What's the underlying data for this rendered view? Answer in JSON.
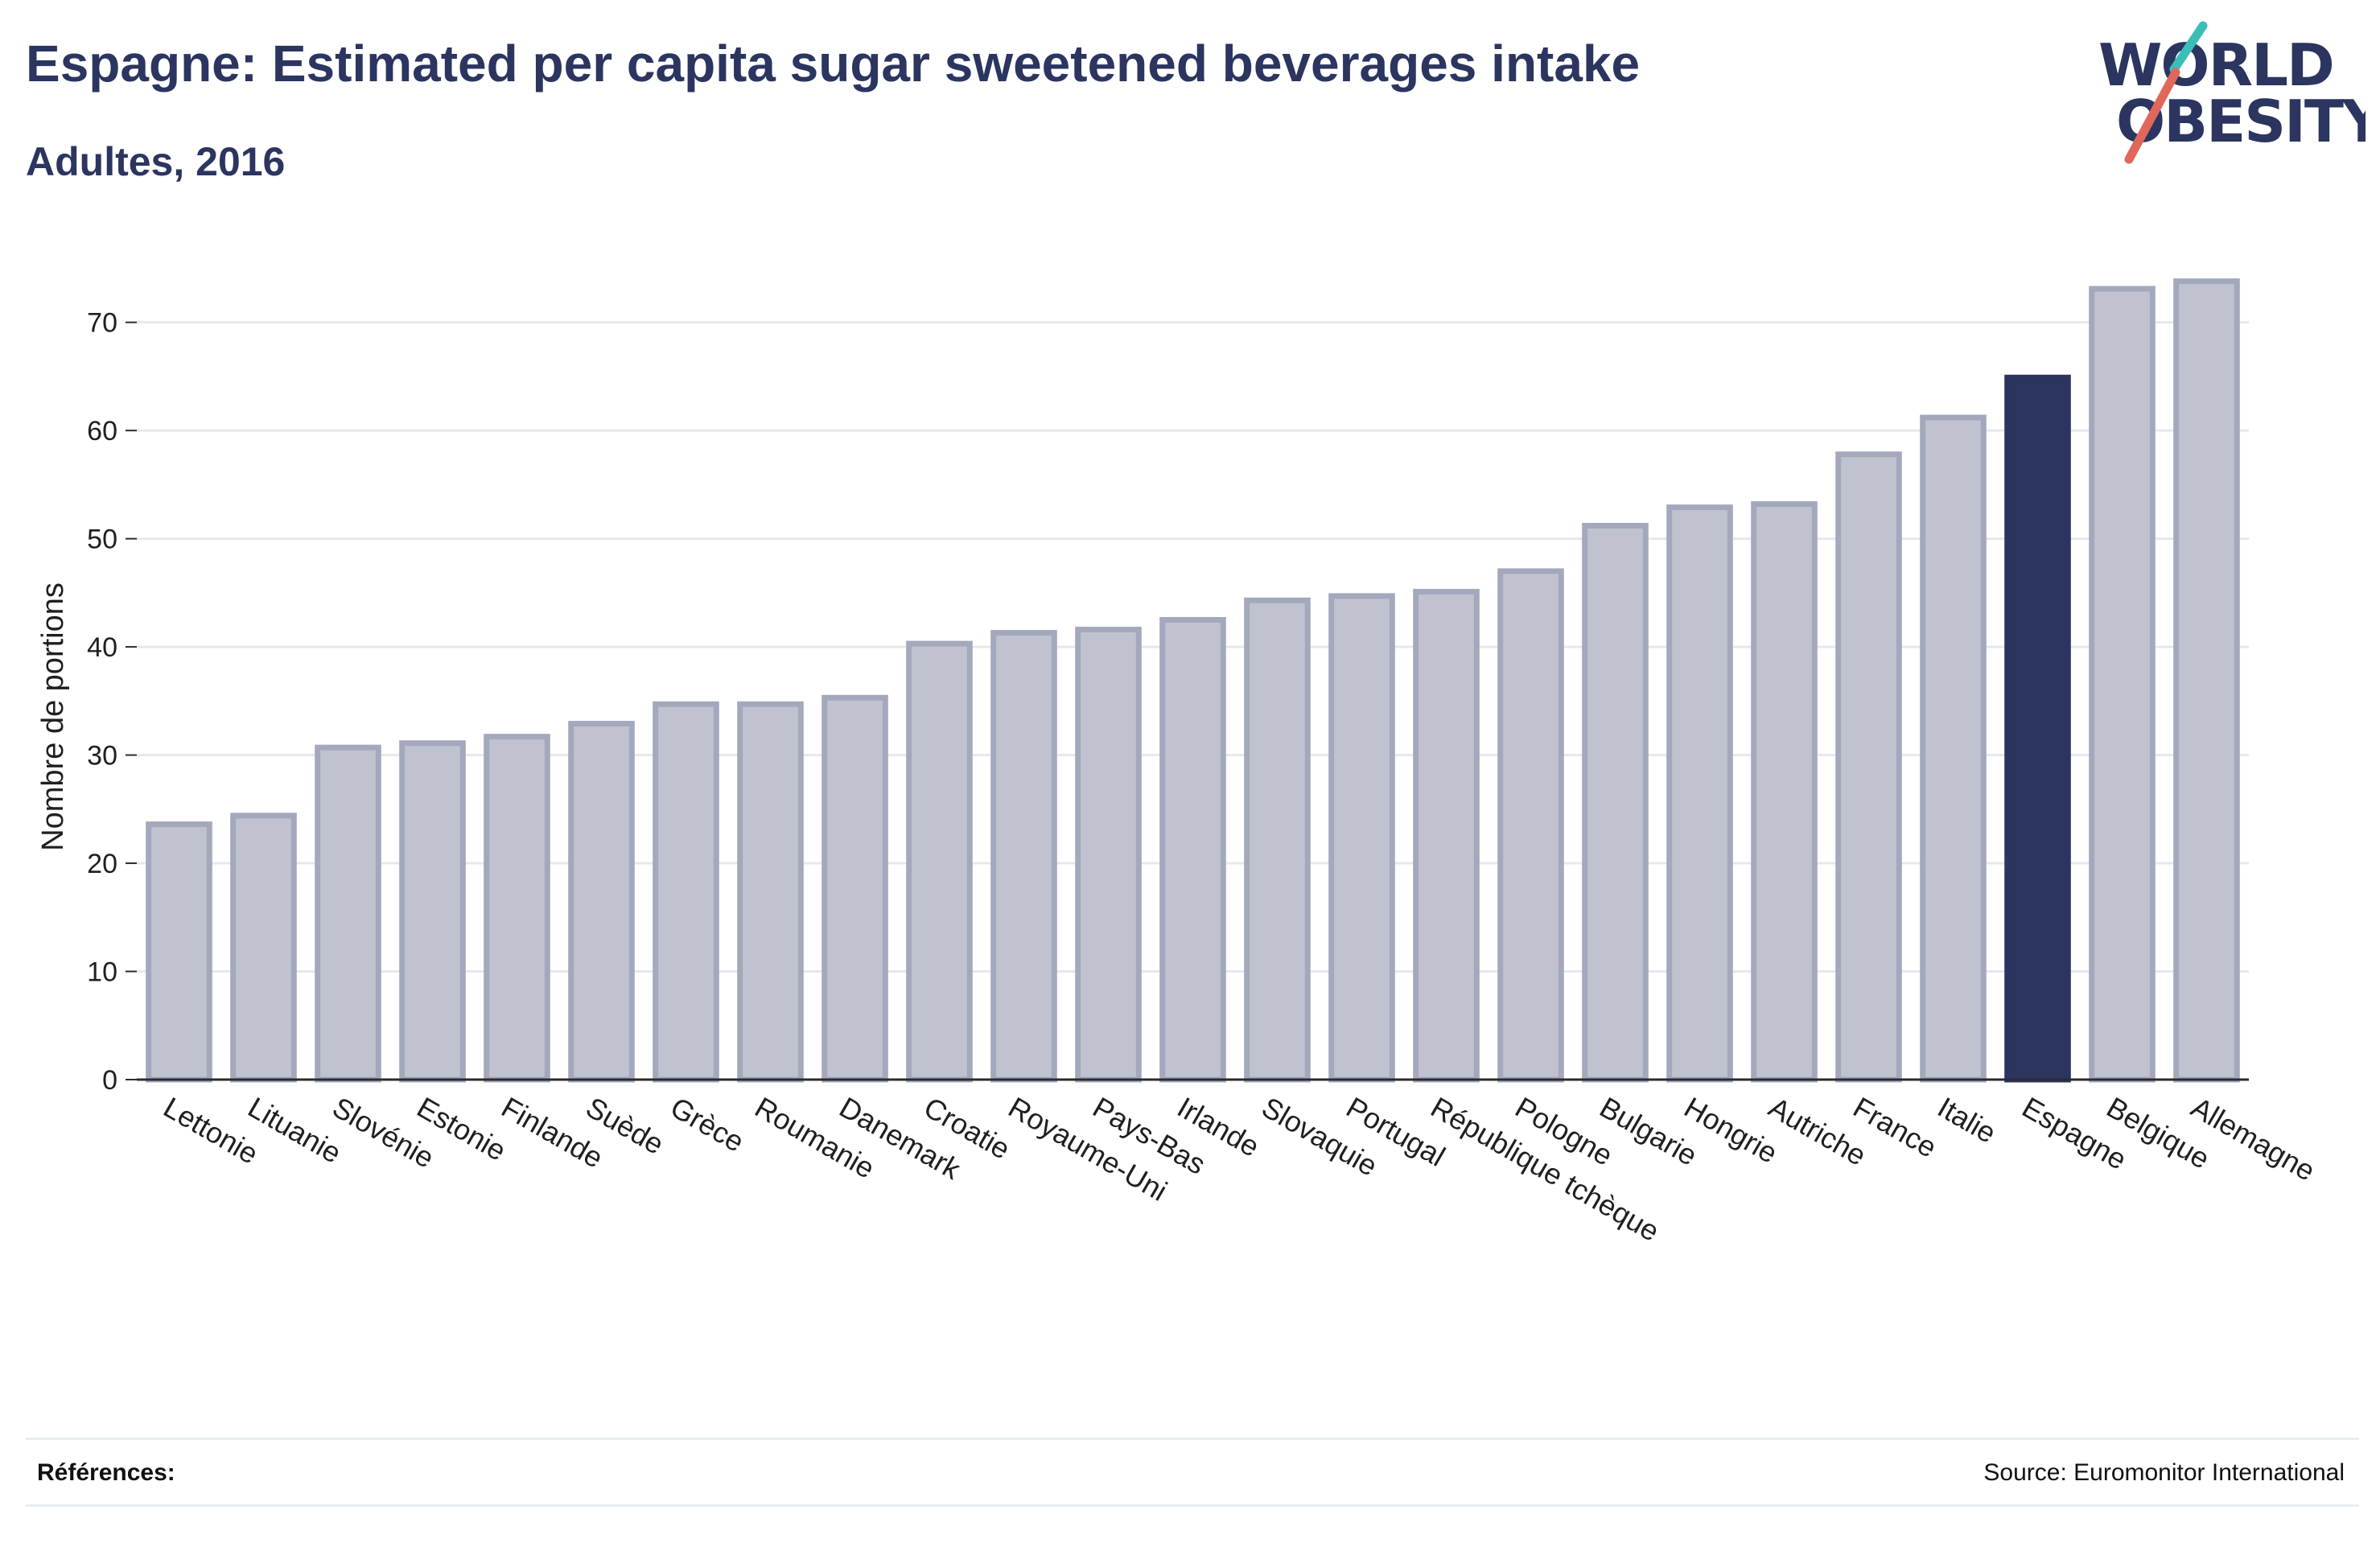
{
  "header": {
    "title": "Espagne: Estimated per capita sugar sweetened beverages intake",
    "subtitle": "Adultes, 2016"
  },
  "logo": {
    "line1": "WORLD",
    "line2": "OBESITY",
    "slash_color_top": "#3dbdb8",
    "slash_color_bottom": "#e0685a"
  },
  "footer": {
    "references_label": "Références:",
    "source": "Source: Euromonitor International"
  },
  "colors": {
    "bar": "#c0c3cf",
    "bar_outline": "#a4a8bd",
    "highlight": "#2b3560",
    "grid": "#e6e8ee",
    "axis": "#2b2b2b"
  },
  "chart_data": {
    "type": "bar",
    "title": "Espagne: Estimated per capita sugar sweetened beverages intake",
    "subtitle": "Adultes, 2016",
    "xlabel": "",
    "ylabel": "Nombre de portions",
    "ylim": [
      0,
      76
    ],
    "yticks": [
      0,
      10,
      20,
      30,
      40,
      50,
      60,
      70
    ],
    "grid": true,
    "highlight": "Espagne",
    "categories": [
      "Lettonie",
      "Lituanie",
      "Slovénie",
      "Estonie",
      "Finlande",
      "Suède",
      "Grèce",
      "Roumanie",
      "Danemark",
      "Croatie",
      "Royaume-Uni",
      "Pays-Bas",
      "Irlande",
      "Slovaquie",
      "Portugal",
      "République tchèque",
      "Pologne",
      "Bulgarie",
      "Hongrie",
      "Autriche",
      "France",
      "Italie",
      "Espagne",
      "Belgique",
      "Allemagne"
    ],
    "values": [
      23.6,
      24.4,
      30.7,
      31.1,
      31.7,
      32.9,
      34.7,
      34.7,
      35.3,
      40.3,
      41.3,
      41.6,
      42.5,
      44.3,
      44.7,
      45.1,
      47.0,
      51.2,
      52.9,
      53.2,
      57.8,
      61.2,
      64.9,
      73.1,
      73.8
    ]
  }
}
